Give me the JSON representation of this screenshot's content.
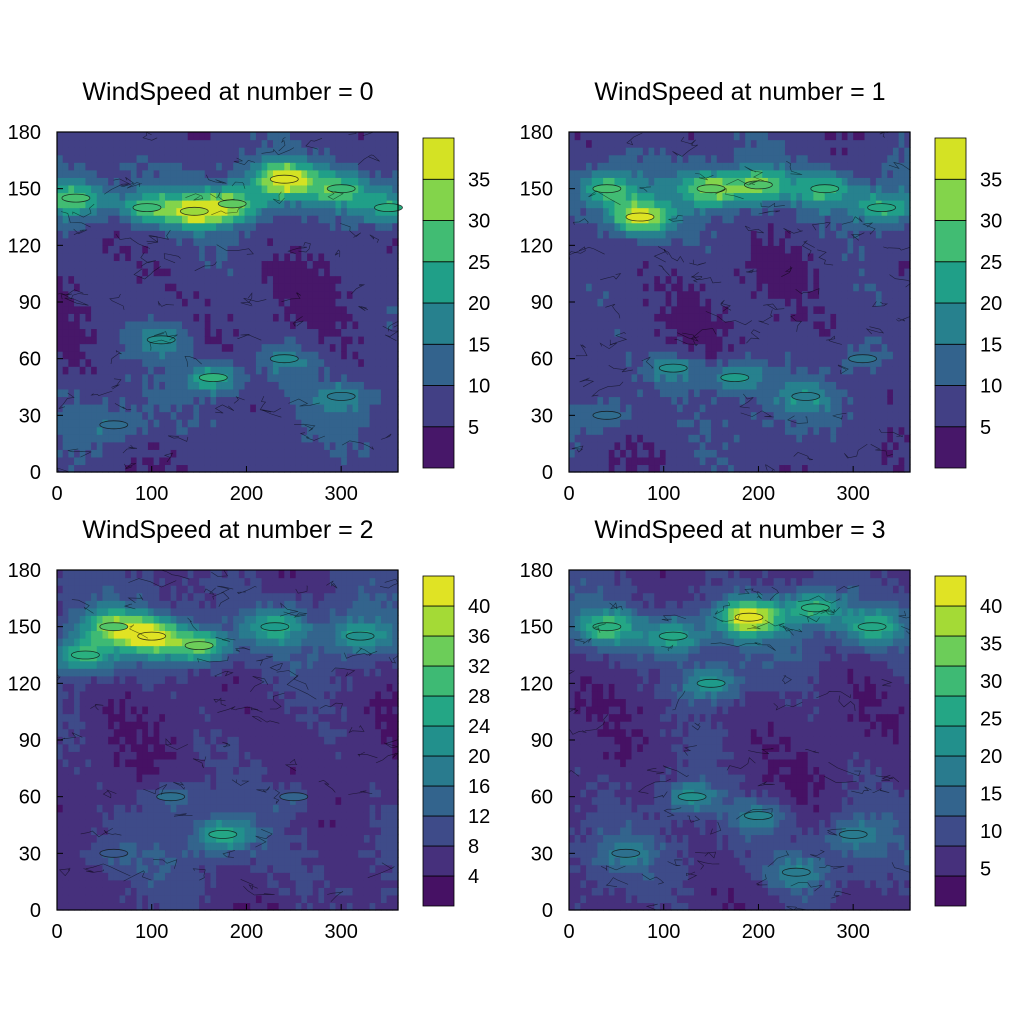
{
  "colors": {
    "viridis": [
      "#440154",
      "#482173",
      "#433e85",
      "#38588c",
      "#2d708e",
      "#25858e",
      "#1e9b8a",
      "#2ab07f",
      "#52c569",
      "#86d549",
      "#c2df23",
      "#fde725"
    ]
  },
  "chart_data": [
    {
      "type": "heatmap",
      "title": "WindSpeed at number = 0",
      "xlim": [
        0,
        360
      ],
      "ylim": [
        0,
        180
      ],
      "x_ticks": [
        0,
        100,
        200,
        300
      ],
      "y_ticks": [
        0,
        30,
        60,
        90,
        120,
        150,
        180
      ],
      "colorbar": {
        "min": 0,
        "max": 40,
        "levels": 8,
        "ticks": [
          5,
          10,
          15,
          20,
          25,
          30,
          35
        ]
      },
      "jets": [
        {
          "x": 20,
          "y": 145,
          "v": 28
        },
        {
          "x": 95,
          "y": 140,
          "v": 27
        },
        {
          "x": 145,
          "y": 138,
          "v": 34
        },
        {
          "x": 185,
          "y": 142,
          "v": 30
        },
        {
          "x": 240,
          "y": 155,
          "v": 38
        },
        {
          "x": 300,
          "y": 150,
          "v": 27
        },
        {
          "x": 350,
          "y": 140,
          "v": 25
        },
        {
          "x": 165,
          "y": 50,
          "v": 26
        },
        {
          "x": 110,
          "y": 70,
          "v": 20
        },
        {
          "x": 240,
          "y": 60,
          "v": 19
        },
        {
          "x": 300,
          "y": 40,
          "v": 16
        },
        {
          "x": 60,
          "y": 25,
          "v": 14
        }
      ]
    },
    {
      "type": "heatmap",
      "title": "WindSpeed at number = 1",
      "xlim": [
        0,
        360
      ],
      "ylim": [
        0,
        180
      ],
      "x_ticks": [
        0,
        100,
        200,
        300
      ],
      "y_ticks": [
        0,
        30,
        60,
        90,
        120,
        150,
        180
      ],
      "colorbar": {
        "min": 0,
        "max": 40,
        "levels": 8,
        "ticks": [
          5,
          10,
          15,
          20,
          25,
          30,
          35
        ]
      },
      "jets": [
        {
          "x": 75,
          "y": 135,
          "v": 38
        },
        {
          "x": 40,
          "y": 150,
          "v": 28
        },
        {
          "x": 150,
          "y": 150,
          "v": 30
        },
        {
          "x": 200,
          "y": 152,
          "v": 29
        },
        {
          "x": 270,
          "y": 150,
          "v": 26
        },
        {
          "x": 330,
          "y": 140,
          "v": 24
        },
        {
          "x": 110,
          "y": 55,
          "v": 20
        },
        {
          "x": 175,
          "y": 50,
          "v": 22
        },
        {
          "x": 250,
          "y": 40,
          "v": 17
        },
        {
          "x": 40,
          "y": 30,
          "v": 14
        },
        {
          "x": 310,
          "y": 60,
          "v": 15
        }
      ]
    },
    {
      "type": "heatmap",
      "title": "WindSpeed at number = 2",
      "xlim": [
        0,
        360
      ],
      "ylim": [
        0,
        180
      ],
      "x_ticks": [
        0,
        100,
        200,
        300
      ],
      "y_ticks": [
        0,
        30,
        60,
        90,
        120,
        150,
        180
      ],
      "colorbar": {
        "min": 0,
        "max": 44,
        "levels": 11,
        "ticks": [
          4,
          8,
          12,
          16,
          20,
          24,
          28,
          32,
          36,
          40
        ]
      },
      "jets": [
        {
          "x": 100,
          "y": 145,
          "v": 42
        },
        {
          "x": 60,
          "y": 150,
          "v": 32
        },
        {
          "x": 150,
          "y": 140,
          "v": 34
        },
        {
          "x": 230,
          "y": 150,
          "v": 24
        },
        {
          "x": 320,
          "y": 145,
          "v": 22
        },
        {
          "x": 30,
          "y": 135,
          "v": 28
        },
        {
          "x": 175,
          "y": 40,
          "v": 26
        },
        {
          "x": 120,
          "y": 60,
          "v": 16
        },
        {
          "x": 250,
          "y": 60,
          "v": 14
        },
        {
          "x": 60,
          "y": 30,
          "v": 12
        }
      ]
    },
    {
      "type": "heatmap",
      "title": "WindSpeed at number = 3",
      "xlim": [
        0,
        360
      ],
      "ylim": [
        0,
        180
      ],
      "x_ticks": [
        0,
        100,
        200,
        300
      ],
      "y_ticks": [
        0,
        30,
        60,
        90,
        120,
        150,
        180
      ],
      "colorbar": {
        "min": 0,
        "max": 44,
        "levels": 11,
        "ticks": [
          5,
          10,
          15,
          20,
          25,
          30,
          35,
          40
        ]
      },
      "jets": [
        {
          "x": 190,
          "y": 155,
          "v": 42
        },
        {
          "x": 40,
          "y": 150,
          "v": 28
        },
        {
          "x": 110,
          "y": 145,
          "v": 26
        },
        {
          "x": 260,
          "y": 160,
          "v": 28
        },
        {
          "x": 320,
          "y": 150,
          "v": 26
        },
        {
          "x": 150,
          "y": 120,
          "v": 24
        },
        {
          "x": 130,
          "y": 60,
          "v": 22
        },
        {
          "x": 200,
          "y": 50,
          "v": 20
        },
        {
          "x": 300,
          "y": 40,
          "v": 18
        },
        {
          "x": 60,
          "y": 30,
          "v": 16
        },
        {
          "x": 240,
          "y": 20,
          "v": 18
        }
      ]
    }
  ]
}
